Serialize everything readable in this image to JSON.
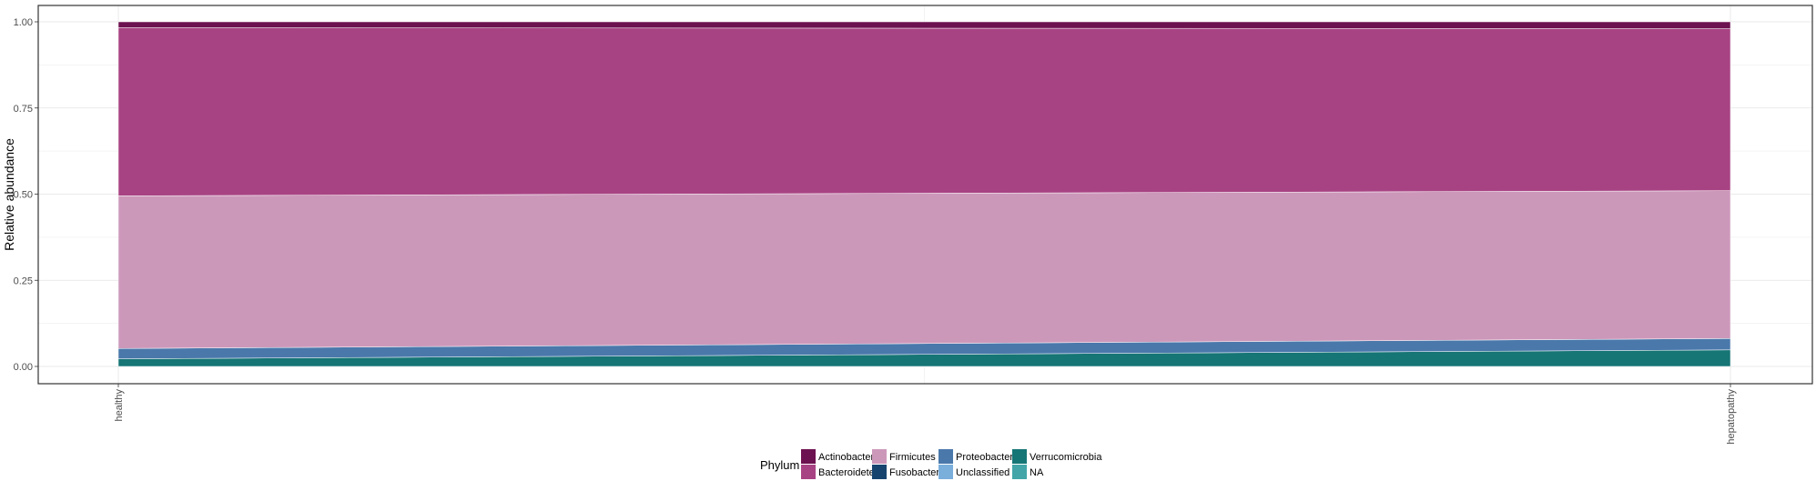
{
  "chart_data": {
    "type": "area",
    "stacked": true,
    "ylabel": "Relative abundance",
    "xlabel": "",
    "categories": [
      "healthy",
      "hepatopathy"
    ],
    "ylim": [
      0,
      1
    ],
    "yticks": [
      "0.00",
      "0.25",
      "0.50",
      "0.75",
      "1.00"
    ],
    "ytick_values": [
      0,
      0.25,
      0.5,
      0.75,
      1.0
    ],
    "grid": true,
    "legend": {
      "title": "Phylum",
      "placement": "bottom",
      "entries": [
        "Actinobacteria",
        "Bacteroidetes",
        "Firmicutes",
        "Fusobacteria",
        "Proteobacteria",
        "Unclassified",
        "Verrucomicrobia",
        "NA"
      ]
    },
    "series": [
      {
        "name": "Verrucomicrobia",
        "color": "#167575",
        "values": [
          0.022,
          0.048
        ]
      },
      {
        "name": "NA",
        "color": "#43a5a8",
        "values": [
          0.0,
          0.0
        ]
      },
      {
        "name": "Proteobacteria",
        "color": "#4a78ab",
        "values": [
          0.03,
          0.033
        ]
      },
      {
        "name": "Unclassified",
        "color": "#7aaedb",
        "values": [
          0.0,
          0.0
        ]
      },
      {
        "name": "Fusobacteria",
        "color": "#17446f",
        "values": [
          0.0,
          0.0
        ]
      },
      {
        "name": "Firmicutes",
        "color": "#cc98ba",
        "values": [
          0.443,
          0.429
        ]
      },
      {
        "name": "Bacteroidetes",
        "color": "#a84383",
        "values": [
          0.488,
          0.47
        ]
      },
      {
        "name": "Actinobacteria",
        "color": "#6d1250",
        "values": [
          0.017,
          0.02
        ]
      }
    ]
  }
}
